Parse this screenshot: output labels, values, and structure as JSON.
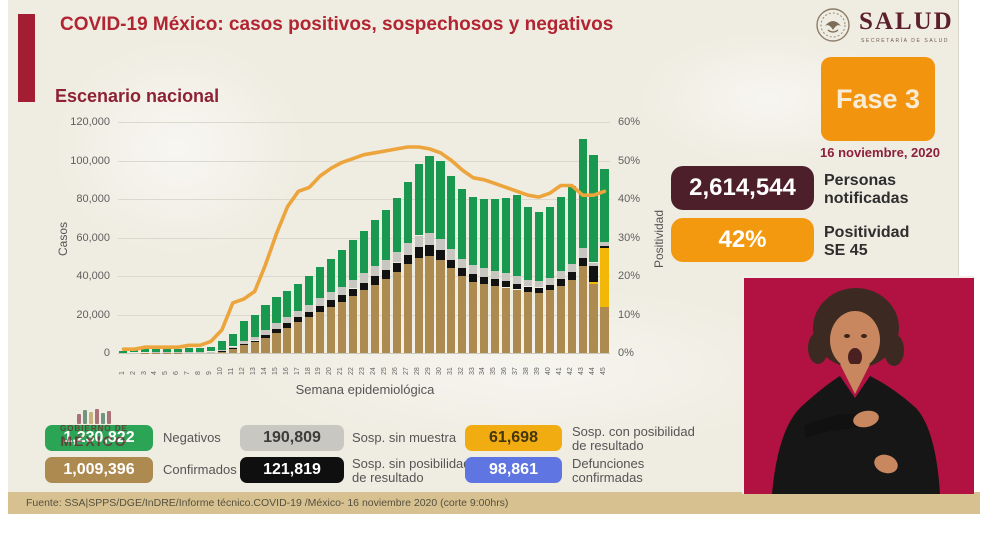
{
  "header": {
    "title": "COVID-19 México: casos positivos, sospechosos y negativos",
    "logo": {
      "name": "SALUD",
      "subtitle": "SECRETARÍA DE SALUD"
    }
  },
  "subtitle": "Escenario nacional",
  "phase": {
    "label": "Fase 3",
    "date": "16 noviembre, 2020"
  },
  "stats": [
    {
      "value": "2,614,544",
      "label": "Personas\nnotificadas"
    },
    {
      "value": "42%",
      "label": "Positividad\nSE 45"
    }
  ],
  "chart_data": {
    "type": "bar",
    "subtype": "stacked bars + line (dual axis)",
    "title": "Escenario nacional",
    "xlabel": "Semana epidemiológica",
    "ylabel_left": "Casos",
    "ylabel_right": "Positividad",
    "ylim_left": [
      0,
      120000
    ],
    "ylim_right_pct": [
      0,
      60
    ],
    "grid": true,
    "yticks_left": [
      "0",
      "20,000",
      "40,000",
      "60,000",
      "80,000",
      "100,000",
      "120,000"
    ],
    "yticks_right": [
      "0%",
      "10%",
      "20%",
      "30%",
      "40%",
      "50%",
      "60%"
    ],
    "x": [
      1,
      2,
      3,
      4,
      5,
      6,
      7,
      8,
      9,
      10,
      11,
      12,
      13,
      14,
      15,
      16,
      17,
      18,
      19,
      20,
      21,
      22,
      23,
      24,
      25,
      26,
      27,
      28,
      29,
      30,
      31,
      32,
      33,
      34,
      35,
      36,
      37,
      38,
      39,
      40,
      41,
      42,
      43,
      44,
      45
    ],
    "units": "thousands of cases per week (estimated from axis)",
    "series": [
      {
        "name": "Confirmados",
        "color": "#ac8a50",
        "values": [
          0.1,
          0.1,
          0.2,
          0.2,
          0.2,
          0.2,
          0.3,
          0.3,
          0.4,
          1.0,
          2.2,
          4.0,
          5.5,
          8.0,
          10.5,
          13.0,
          16.0,
          18.5,
          21.5,
          24.0,
          26.5,
          29.5,
          32.5,
          35.5,
          38.5,
          42.0,
          46.0,
          49.5,
          50.5,
          48.5,
          44.0,
          40.0,
          37.0,
          36.0,
          35.0,
          34.0,
          33.0,
          31.5,
          31.0,
          32.5,
          35.0,
          38.0,
          45.0,
          36.0,
          24.0
        ]
      },
      {
        "name": "Sosp. con posibilidad de resultado",
        "color": "#f2b707",
        "values": [
          0,
          0,
          0,
          0,
          0,
          0,
          0,
          0,
          0,
          0,
          0,
          0,
          0,
          0,
          0,
          0,
          0,
          0,
          0,
          0,
          0,
          0,
          0,
          0,
          0,
          0,
          0,
          0,
          0,
          0,
          0,
          0,
          0,
          0,
          0,
          0,
          0,
          0,
          0,
          0,
          0,
          0,
          0,
          1.0,
          30.5
        ]
      },
      {
        "name": "Sosp. sin posibilidad de resultado",
        "color": "#121212",
        "values": [
          0.05,
          0.05,
          0.05,
          0.05,
          0.05,
          0.05,
          0.1,
          0.1,
          0.1,
          0.2,
          0.4,
          0.8,
          1.0,
          1.5,
          2.0,
          2.5,
          2.5,
          3.0,
          3.0,
          3.5,
          3.5,
          4.0,
          4.0,
          4.5,
          4.5,
          5.0,
          5.0,
          5.5,
          5.5,
          5.0,
          4.5,
          4.0,
          4.0,
          3.5,
          3.5,
          3.5,
          3.0,
          3.0,
          3.0,
          3.0,
          3.5,
          4.0,
          4.5,
          8.0,
          1.0
        ]
      },
      {
        "name": "Sosp. sin muestra",
        "color": "#c8c6c0",
        "values": [
          0.1,
          0.1,
          0.1,
          0.2,
          0.2,
          0.2,
          0.2,
          0.2,
          0.3,
          0.4,
          0.8,
          1.5,
          2.0,
          2.5,
          3.0,
          3.0,
          3.5,
          3.5,
          4.0,
          4.0,
          4.5,
          4.5,
          5.0,
          5.0,
          5.5,
          5.5,
          6.0,
          6.0,
          6.5,
          6.0,
          5.5,
          5.0,
          4.5,
          4.5,
          4.0,
          4.0,
          4.0,
          3.5,
          3.5,
          3.5,
          4.0,
          4.0,
          5.0,
          2.0,
          2.0
        ]
      },
      {
        "name": "Negativos",
        "color": "#18994f",
        "values": [
          0.8,
          1.2,
          1.5,
          1.8,
          1.8,
          1.8,
          1.9,
          2.2,
          2.5,
          4.5,
          6.5,
          10.5,
          11.5,
          13.0,
          13.5,
          13.5,
          14.0,
          15.0,
          16.0,
          17.5,
          19.0,
          20.5,
          22.0,
          24.0,
          26.0,
          28.0,
          32.0,
          37.0,
          40.0,
          40.5,
          38.0,
          36.0,
          35.5,
          36.0,
          37.5,
          39.0,
          42.0,
          38.0,
          36.0,
          37.0,
          38.5,
          41.0,
          56.5,
          56.0,
          38.0
        ]
      }
    ],
    "line": {
      "name": "Positividad",
      "color": "#eca43c",
      "values_pct": [
        1,
        1,
        1.5,
        1.5,
        1.5,
        1.5,
        2,
        2,
        3,
        6,
        13,
        14,
        16,
        23,
        31,
        38,
        42,
        43,
        46,
        48,
        49.5,
        50.5,
        51.5,
        52,
        52.5,
        53,
        53.5,
        53.5,
        53,
        52,
        50,
        47.5,
        45.5,
        45,
        44,
        43,
        42,
        41,
        40.5,
        41.5,
        43.5,
        43.5,
        41,
        41,
        42
      ]
    }
  },
  "legend": [
    {
      "value": "1,230,822",
      "label": "Negativos",
      "color": "#2ba456"
    },
    {
      "value": "190,809",
      "label": "Sosp. sin muestra",
      "color": "#c9c7c2"
    },
    {
      "value": "61,698",
      "label": "Sosp. con posibilidad\nde resultado",
      "color": "#f0ac10"
    },
    {
      "value": "1,009,396",
      "label": "Confirmados",
      "color": "#ac8a50"
    },
    {
      "value": "121,819",
      "label": "Sosp. sin posibilidad\nde resultado",
      "color": "#0f0f0f"
    },
    {
      "value": "98,861",
      "label": "Defunciones\nconfirmadas",
      "color": "#5f75e2"
    }
  ],
  "watermark": {
    "line1": "GOBIERNO DE",
    "line2": "MÉXICO"
  },
  "footer": {
    "source": "Fuente: SSA|SPPS/DGE/InDRE/Informe técnico.COVID-19 /México- 16 noviembre 2020 (corte 9:00hrs)"
  }
}
